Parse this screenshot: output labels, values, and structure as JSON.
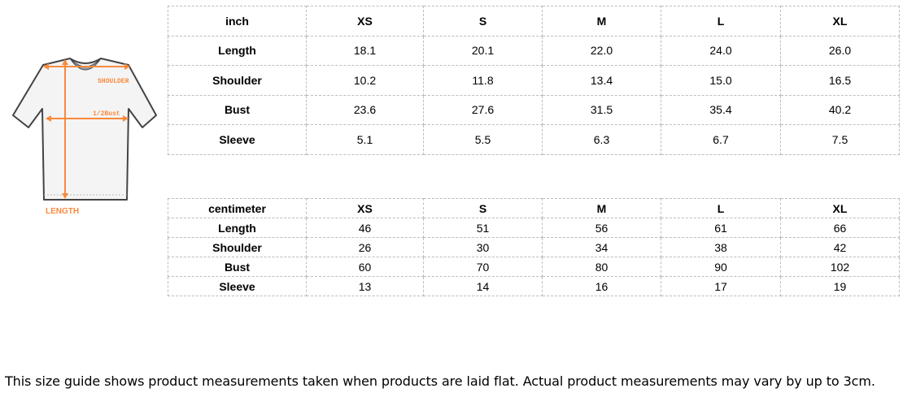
{
  "inch_table": {
    "headers": [
      "inch",
      "XS",
      "S",
      "M",
      "L",
      "XL"
    ],
    "rows": [
      [
        "Length",
        "18.1",
        "20.1",
        "22.0",
        "24.0",
        "26.0"
      ],
      [
        "Shoulder",
        "10.2",
        "11.8",
        "13.4",
        "15.0",
        "16.5"
      ],
      [
        "Bust",
        "23.6",
        "27.6",
        "31.5",
        "35.4",
        "40.2"
      ],
      [
        "Sleeve",
        "5.1",
        "5.5",
        "6.3",
        "6.7",
        "7.5"
      ]
    ]
  },
  "cm_table": {
    "headers": [
      "centimeter",
      "XS",
      "S",
      "M",
      "L",
      "XL"
    ],
    "rows": [
      [
        "Length",
        "46",
        "51",
        "56",
        "61",
        "66"
      ],
      [
        "Shoulder",
        "26",
        "30",
        "34",
        "38",
        "42"
      ],
      [
        "Bust",
        "60",
        "70",
        "80",
        "90",
        "102"
      ],
      [
        "Sleeve",
        "13",
        "14",
        "16",
        "17",
        "19"
      ]
    ]
  },
  "diagram": {
    "shoulder_label": "SHOULDER",
    "bust_label": "1/2Bust",
    "length_label": "LENGTH",
    "accent": "#f98a3c"
  },
  "note": "This size guide shows product measurements taken when products are laid flat. Actual product measurements may vary by up to 3cm."
}
